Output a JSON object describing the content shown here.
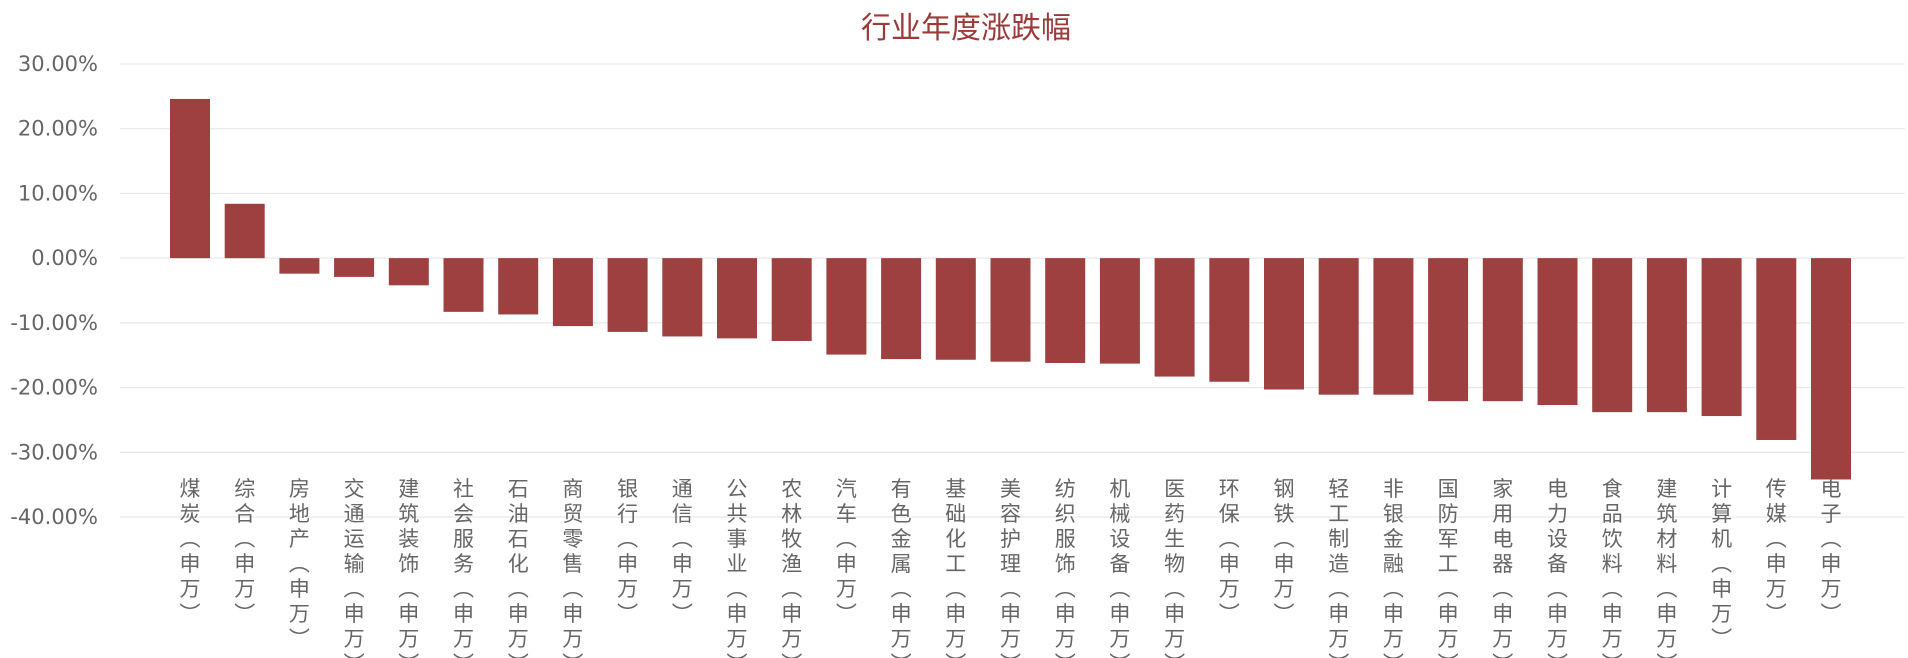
{
  "chart_data": {
    "type": "bar",
    "title": "行业年度涨跌幅",
    "xlabel": "",
    "ylabel": "",
    "ylim": [
      -0.4,
      0.3
    ],
    "y_ticks": [
      0.3,
      0.2,
      0.1,
      0.0,
      -0.1,
      -0.2,
      -0.3,
      -0.4
    ],
    "y_tick_labels": [
      "30.00%",
      "20.00%",
      "10.00%",
      "0.00%",
      "-10.00%",
      "-20.00%",
      "-30.00%",
      "-40.00%"
    ],
    "grid": true,
    "legend": "none",
    "bar_color": "#9e4040",
    "categories": [
      "煤炭（申万）",
      "综合（申万）",
      "房地产（申万）",
      "交通运输（申万）",
      "建筑装饰（申万）",
      "社会服务（申万）",
      "石油石化（申万）",
      "商贸零售（申万）",
      "银行（申万）",
      "通信（申万）",
      "公共事业（申万）",
      "农林牧渔（申万）",
      "汽车（申万）",
      "有色金属（申万）",
      "基础化工（申万）",
      "美容护理（申万）",
      "纺织服饰（申万）",
      "机械设备（申万）",
      "医药生物（申万）",
      "环保（申万）",
      "钢铁（申万）",
      "轻工制造（申万）",
      "非银金融（申万）",
      "国防军工（申万）",
      "家用电器（申万）",
      "电力设备（申万）",
      "食品饮料（申万）",
      "建筑材料（申万）",
      "计算机（申万）",
      "传媒（申万）",
      "电子（申万）"
    ],
    "values": [
      0.246,
      0.084,
      -0.024,
      -0.029,
      -0.042,
      -0.083,
      -0.087,
      -0.105,
      -0.114,
      -0.121,
      -0.124,
      -0.128,
      -0.149,
      -0.156,
      -0.157,
      -0.16,
      -0.162,
      -0.163,
      -0.183,
      -0.191,
      -0.203,
      -0.211,
      -0.211,
      -0.221,
      -0.221,
      -0.227,
      -0.238,
      -0.238,
      -0.244,
      -0.281,
      -0.342
    ]
  }
}
